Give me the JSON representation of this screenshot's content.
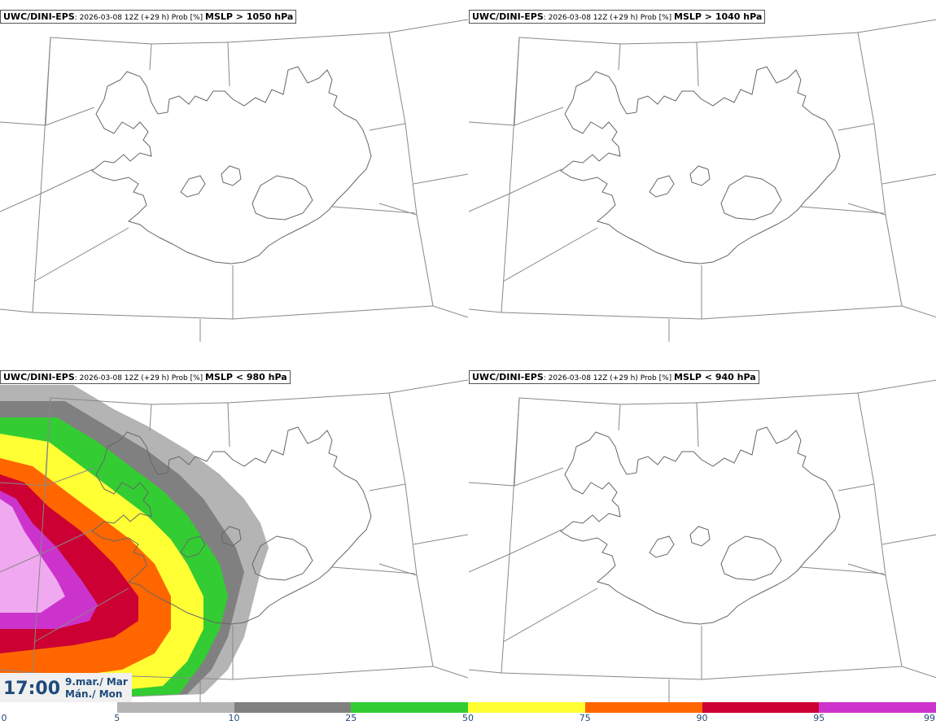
{
  "panels": [
    {
      "model": "UWC/DINI-EPS",
      "meta": ": 2026-03-08 12Z (+29 h) Prob [%] ",
      "param": "MSLP > 1050 hPa",
      "has_field": false
    },
    {
      "model": "UWC/DINI-EPS",
      "meta": ": 2026-03-08 12Z (+29 h) Prob [%] ",
      "param": "MSLP > 1040 hPa",
      "has_field": false
    },
    {
      "model": "UWC/DINI-EPS",
      "meta": ": 2026-03-08 12Z (+29 h) Prob [%] ",
      "param": "MSLP < 980 hPa",
      "has_field": true
    },
    {
      "model": "UWC/DINI-EPS",
      "meta": ": 2026-03-08 12Z (+29 h) Prob [%] ",
      "param": "MSLP < 940 hPa",
      "has_field": false
    }
  ],
  "clock": {
    "time": "17:00",
    "date_line1": "9.mar./ Mar",
    "date_line2": "Mán./ Mon"
  },
  "colorbar": {
    "ticks": [
      "0",
      "5",
      "10",
      "25",
      "50",
      "75",
      "90",
      "95",
      "99"
    ],
    "colors": [
      "#ffffff",
      "#b4b4b4",
      "#808080",
      "#33cc33",
      "#ffff33",
      "#ff6600",
      "#cc0033",
      "#cc33cc",
      "#f0a8f0"
    ]
  },
  "colors": {
    "coast": "#666666",
    "grid": "#888888"
  }
}
